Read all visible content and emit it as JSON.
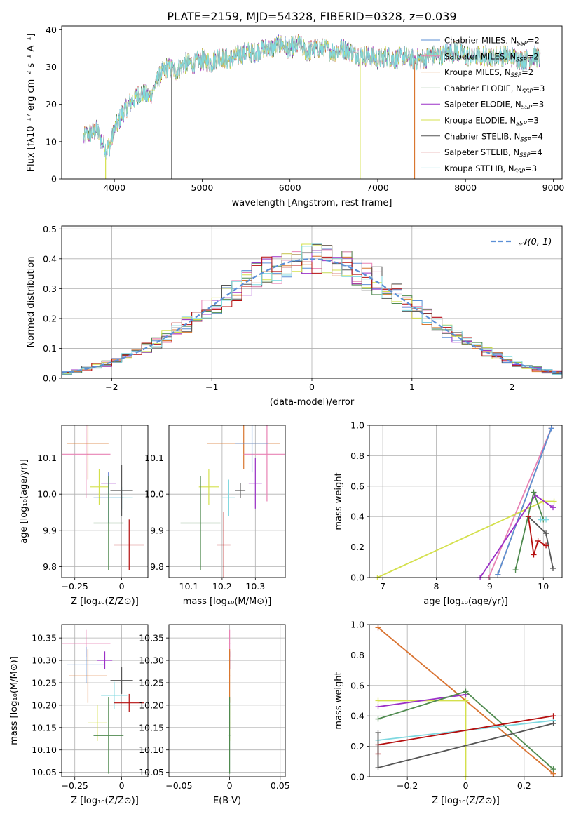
{
  "figure_title": "PLATE=2159, MJD=54328, FIBERID=0328, z=0.039",
  "colors": {
    "chabrier_miles": "#5b8fd6",
    "salpeter_miles": "#e882b4",
    "kroupa_miles": "#d9772f",
    "chabrier_elodie": "#4f8a4f",
    "salpeter_elodie": "#9b30c7",
    "kroupa_elodie": "#d4e04c",
    "chabrier_stelib": "#555555",
    "salpeter_stelib": "#b50f0f",
    "kroupa_stelib": "#7fd8e0",
    "gaussian": "#5b8fd6"
  },
  "chart_data": [
    {
      "id": "spectrum",
      "type": "line",
      "title": "PLATE=2159, MJD=54328, FIBERID=0328, z=0.039",
      "xlabel": "wavelength [Angstrom, rest frame]",
      "ylabel": "Flux [fλ10⁻¹⁷ erg cm⁻² s⁻¹ A⁻¹]",
      "xlim": [
        3400,
        9100
      ],
      "ylim": [
        0,
        41
      ],
      "xticks": [
        4000,
        5000,
        6000,
        7000,
        8000,
        9000
      ],
      "yticks": [
        0,
        10,
        20,
        30,
        40
      ],
      "grid": false,
      "legend": "right",
      "continuum": {
        "x": [
          3650,
          3700,
          3800,
          3900,
          3950,
          4000,
          4100,
          4200,
          4300,
          4400,
          4500,
          4600,
          4700,
          4800,
          4900,
          5000,
          5100,
          5200,
          5300,
          5400,
          5500,
          5600,
          5700,
          5800,
          5900,
          6000,
          6100,
          6200,
          6300,
          6400,
          6500,
          6600,
          6700,
          6800,
          6900,
          7000,
          7100,
          7200,
          7300,
          7400,
          7500,
          7600,
          7700,
          7800,
          7900,
          8000,
          8100,
          8200,
          8300,
          8400,
          8500,
          8600,
          8700,
          8800,
          8850
        ],
        "y": [
          11,
          12,
          13,
          8,
          9,
          13,
          18,
          21,
          23,
          22,
          27,
          30,
          29,
          31,
          31,
          32,
          31,
          33,
          32,
          33,
          34,
          34,
          35,
          35,
          36,
          35,
          36,
          34,
          35,
          35,
          34,
          35,
          34,
          33,
          33,
          32,
          33,
          32,
          33,
          32,
          32,
          33,
          33,
          34,
          34,
          33,
          33,
          33,
          33,
          33,
          33,
          32,
          32,
          33,
          32
        ]
      },
      "series": [
        {
          "name": "Chabrier MILES, N_SSP=2",
          "label_main": "Chabrier MILES, N",
          "label_sub": "SSP",
          "label_end": "=2",
          "color": "#5b8fd6"
        },
        {
          "name": "Salpeter MILES, N_SSP=2",
          "label_main": "Salpeter MILES, N",
          "label_sub": "SSP",
          "label_end": "=2",
          "color": "#e882b4"
        },
        {
          "name": "Kroupa MILES, N_SSP=2",
          "label_main": "Kroupa MILES, N",
          "label_sub": "SSP",
          "label_end": "=2",
          "color": "#d9772f"
        },
        {
          "name": "Chabrier ELODIE, N_SSP=3",
          "label_main": "Chabrier ELODIE, N",
          "label_sub": "SSP",
          "label_end": "=3",
          "color": "#4f8a4f"
        },
        {
          "name": "Salpeter ELODIE, N_SSP=3",
          "label_main": "Salpeter ELODIE, N",
          "label_sub": "SSP",
          "label_end": "=3",
          "color": "#9b30c7"
        },
        {
          "name": "Kroupa ELODIE, N_SSP=3",
          "label_main": "Kroupa ELODIE, N",
          "label_sub": "SSP",
          "label_end": "=3",
          "color": "#d4e04c"
        },
        {
          "name": "Chabrier STELIB, N_SSP=4",
          "label_main": "Chabrier STELIB, N",
          "label_sub": "SSP",
          "label_end": "=4",
          "color": "#555555"
        },
        {
          "name": "Salpeter STELIB, N_SSP=4",
          "label_main": "Salpeter STELIB, N",
          "label_sub": "SSP",
          "label_end": "=4",
          "color": "#b50f0f"
        },
        {
          "name": "Kroupa STELIB, N_SSP=3",
          "label_main": "Kroupa STELIB, N",
          "label_sub": "SSP",
          "label_end": "=3",
          "color": "#7fd8e0"
        }
      ],
      "dropouts": [
        {
          "x": 3900,
          "color": "#d4e04c"
        },
        {
          "x": 4650,
          "color": "#555555"
        },
        {
          "x": 6800,
          "color": "#d4e04c"
        },
        {
          "x": 7420,
          "color": "#d9772f"
        }
      ]
    },
    {
      "id": "residuals",
      "type": "line",
      "xlabel": "(data-model)/error",
      "ylabel": "Normed distribution",
      "xlim": [
        -2.5,
        2.5
      ],
      "ylim": [
        0,
        0.51
      ],
      "xticks": [
        -2,
        -1,
        0,
        1,
        2
      ],
      "yticks": [
        0.0,
        0.1,
        0.2,
        0.3,
        0.4,
        0.5
      ],
      "grid": true,
      "legend": "top-right",
      "gaussian_label": "𝒩(0, 1)",
      "bin_width": 0.1
    },
    {
      "id": "age-vs-Z",
      "type": "scatter",
      "xlabel": "Z [log₁₀(Z/Z⊙)]",
      "ylabel": "age  [log₁₀(age/yr)]",
      "xlim": [
        -0.32,
        0.14
      ],
      "ylim": [
        9.77,
        10.19
      ],
      "xticks": [
        -0.25,
        0.0
      ],
      "yticks": [
        9.8,
        9.9,
        10.0,
        10.1
      ],
      "grid": true,
      "points": [
        {
          "x": -0.19,
          "y": 10.11,
          "xerr": 0.13,
          "yerr": 0.12,
          "color": "#e882b4"
        },
        {
          "x": -0.18,
          "y": 10.14,
          "xerr": 0.11,
          "yerr": 0.1,
          "color": "#d9772f"
        },
        {
          "x": -0.12,
          "y": 10.02,
          "xerr": 0.05,
          "yerr": 0.05,
          "color": "#d4e04c"
        },
        {
          "x": -0.07,
          "y": 10.03,
          "xerr": 0.04,
          "yerr": 0.03,
          "color": "#9b30c7"
        },
        {
          "x": -0.07,
          "y": 9.99,
          "xerr": 0.08,
          "yerr": 0.07,
          "color": "#5b8fd6"
        },
        {
          "x": 0.0,
          "y": 9.99,
          "xerr": 0.06,
          "yerr": 0.03,
          "color": "#7fd8e0"
        },
        {
          "x": 0.0,
          "y": 10.01,
          "xerr": 0.06,
          "yerr": 0.07,
          "color": "#555555"
        },
        {
          "x": -0.07,
          "y": 9.92,
          "xerr": 0.08,
          "yerr": 0.13,
          "color": "#4f8a4f"
        },
        {
          "x": 0.04,
          "y": 9.86,
          "xerr": 0.08,
          "yerr": 0.07,
          "color": "#b50f0f"
        }
      ]
    },
    {
      "id": "age-vs-mass",
      "type": "scatter",
      "xlabel": "mass [log₁₀(M/M⊙)]",
      "ylabel": "",
      "xlim": [
        10.04,
        10.39
      ],
      "ylim": [
        9.77,
        10.19
      ],
      "xticks": [
        10.1,
        10.2,
        10.3
      ],
      "yticks": [
        9.8,
        9.9,
        10.0,
        10.1
      ],
      "grid": true,
      "points": [
        {
          "x": 10.265,
          "y": 10.14,
          "xerr": 0.11,
          "yerr": 0.07,
          "color": "#d9772f"
        },
        {
          "x": 10.335,
          "y": 10.11,
          "xerr": 0.07,
          "yerr": 0.13,
          "color": "#e882b4"
        },
        {
          "x": 10.29,
          "y": 10.14,
          "xerr": 0.05,
          "yerr": 0.08,
          "color": "#5b8fd6"
        },
        {
          "x": 10.16,
          "y": 10.02,
          "xerr": 0.03,
          "yerr": 0.05,
          "color": "#d4e04c"
        },
        {
          "x": 10.3,
          "y": 10.03,
          "xerr": 0.02,
          "yerr": 0.07,
          "color": "#9b30c7"
        },
        {
          "x": 10.255,
          "y": 10.01,
          "xerr": 0.015,
          "yerr": 0.02,
          "color": "#555555"
        },
        {
          "x": 10.22,
          "y": 9.99,
          "xerr": 0.02,
          "yerr": 0.05,
          "color": "#7fd8e0"
        },
        {
          "x": 10.135,
          "y": 9.92,
          "xerr": 0.06,
          "yerr": 0.13,
          "color": "#4f8a4f"
        },
        {
          "x": 10.205,
          "y": 9.86,
          "xerr": 0.02,
          "yerr": 0.09,
          "color": "#b50f0f"
        }
      ]
    },
    {
      "id": "mass-weight-vs-age",
      "type": "line",
      "xlabel": "age  [log₁₀(age/yr)]",
      "ylabel": "mass weight",
      "xlim": [
        6.75,
        10.35
      ],
      "ylim": [
        0,
        1
      ],
      "xticks": [
        7,
        8,
        9,
        10
      ],
      "yticks": [
        0.0,
        0.2,
        0.4,
        0.6,
        0.8,
        1.0
      ],
      "grid": true,
      "series": [
        {
          "color": "#e882b4",
          "x": [
            8.98,
            10.15
          ],
          "y": [
            0.0,
            0.98
          ]
        },
        {
          "color": "#d9772f",
          "x": [
            9.15,
            10.15
          ],
          "y": [
            0.02,
            0.98
          ]
        },
        {
          "color": "#5b8fd6",
          "x": [
            9.15,
            10.15
          ],
          "y": [
            0.02,
            0.98
          ]
        },
        {
          "color": "#d4e04c",
          "x": [
            6.9,
            10.0,
            10.2
          ],
          "y": [
            0.0,
            0.5,
            0.5
          ]
        },
        {
          "color": "#9b30c7",
          "x": [
            8.82,
            9.85,
            10.18
          ],
          "y": [
            0.0,
            0.54,
            0.46
          ]
        },
        {
          "color": "#4f8a4f",
          "x": [
            9.48,
            9.82,
            10.0
          ],
          "y": [
            0.05,
            0.56,
            0.38
          ]
        },
        {
          "color": "#555555",
          "x": [
            9.72,
            10.05,
            10.18
          ],
          "y": [
            0.4,
            0.29,
            0.06
          ]
        },
        {
          "color": "#b50f0f",
          "x": [
            9.72,
            9.82,
            9.9,
            10.05
          ],
          "y": [
            0.4,
            0.15,
            0.24,
            0.21
          ]
        },
        {
          "color": "#7fd8e0",
          "x": [
            9.95,
            10.05
          ],
          "y": [
            0.38,
            0.38
          ]
        }
      ]
    },
    {
      "id": "mass-vs-Z",
      "type": "scatter",
      "xlabel": "Z [log₁₀(Z/Z⊙)]",
      "ylabel": "mass [log₁₀(M/M⊙)]",
      "xlim": [
        -0.32,
        0.14
      ],
      "ylim": [
        10.04,
        10.38
      ],
      "xticks": [
        -0.25,
        0.0
      ],
      "yticks": [
        10.05,
        10.1,
        10.15,
        10.2,
        10.25,
        10.3,
        10.35
      ],
      "grid": true,
      "points": [
        {
          "x": -0.19,
          "y": 10.338,
          "xerr": 0.13,
          "yerr": 0.03,
          "color": "#e882b4"
        },
        {
          "x": -0.19,
          "y": 10.29,
          "xerr": 0.1,
          "yerr": 0.04,
          "color": "#5b8fd6"
        },
        {
          "x": -0.18,
          "y": 10.265,
          "xerr": 0.1,
          "yerr": 0.06,
          "color": "#d9772f"
        },
        {
          "x": -0.09,
          "y": 10.3,
          "xerr": 0.04,
          "yerr": 0.02,
          "color": "#9b30c7"
        },
        {
          "x": -0.13,
          "y": 10.16,
          "xerr": 0.05,
          "yerr": 0.04,
          "color": "#d4e04c"
        },
        {
          "x": 0.0,
          "y": 10.255,
          "xerr": 0.06,
          "yerr": 0.03,
          "color": "#555555"
        },
        {
          "x": -0.04,
          "y": 10.222,
          "xerr": 0.07,
          "yerr": 0.03,
          "color": "#7fd8e0"
        },
        {
          "x": 0.04,
          "y": 10.205,
          "xerr": 0.08,
          "yerr": 0.02,
          "color": "#b50f0f"
        },
        {
          "x": -0.07,
          "y": 10.132,
          "xerr": 0.08,
          "yerr": 0.085,
          "color": "#4f8a4f"
        }
      ]
    },
    {
      "id": "mass-vs-ebv",
      "type": "scatter",
      "xlabel": "E(B-V)",
      "ylabel": "",
      "xlim": [
        -0.06,
        0.055
      ],
      "ylim": [
        10.04,
        10.38
      ],
      "xticks": [
        -0.05,
        0.0,
        0.05
      ],
      "yticks": [
        10.05,
        10.1,
        10.15,
        10.2,
        10.25,
        10.3,
        10.35
      ],
      "grid": true,
      "points": [
        {
          "x": 0.0,
          "y": 10.338,
          "xerr": 0.0005,
          "yerr": 0.03,
          "color": "#e882b4"
        },
        {
          "x": 0.0,
          "y": 10.3,
          "xerr": 0.0005,
          "yerr": 0.02,
          "color": "#9b30c7"
        },
        {
          "x": 0.0,
          "y": 10.265,
          "xerr": 0.0005,
          "yerr": 0.06,
          "color": "#d9772f"
        },
        {
          "x": 0.0,
          "y": 10.16,
          "xerr": 0.0005,
          "yerr": 0.04,
          "color": "#d4e04c"
        },
        {
          "x": 0.0,
          "y": 10.132,
          "xerr": 0.0005,
          "yerr": 0.085,
          "color": "#4f8a4f"
        }
      ]
    },
    {
      "id": "mass-weight-vs-Z",
      "type": "line",
      "xlabel": "Z [log₁₀(Z/Z⊙)]",
      "ylabel": "mass weight",
      "xlim": [
        -0.33,
        0.33
      ],
      "ylim": [
        0,
        1
      ],
      "xticks": [
        -0.2,
        0.0,
        0.2
      ],
      "yticks": [
        0.0,
        0.2,
        0.4,
        0.6,
        0.8,
        1.0
      ],
      "grid": true,
      "series": [
        {
          "color": "#e882b4",
          "x": [
            -0.3,
            0.3
          ],
          "y": [
            0.98,
            0.02
          ]
        },
        {
          "color": "#d9772f",
          "x": [
            -0.3,
            0.3
          ],
          "y": [
            0.98,
            0.02
          ]
        },
        {
          "color": "#d4e04c",
          "x": [
            -0.3,
            0.0,
            0.0
          ],
          "y": [
            0.5,
            0.5,
            0.0
          ]
        },
        {
          "color": "#9b30c7",
          "x": [
            -0.3,
            0.0
          ],
          "y": [
            0.46,
            0.54
          ]
        },
        {
          "color": "#4f8a4f",
          "x": [
            -0.3,
            0.0,
            0.3
          ],
          "y": [
            0.38,
            0.56,
            0.05
          ]
        },
        {
          "color": "#7fd8e0",
          "x": [
            -0.3,
            0.3
          ],
          "y": [
            0.24,
            0.37
          ]
        },
        {
          "color": "#b50f0f",
          "x": [
            -0.3,
            -0.3,
            0.3
          ],
          "y": [
            0.15,
            0.21,
            0.4
          ]
        },
        {
          "color": "#555555",
          "x": [
            -0.3,
            -0.3,
            0.3
          ],
          "y": [
            0.29,
            0.06,
            0.35
          ]
        }
      ]
    }
  ]
}
